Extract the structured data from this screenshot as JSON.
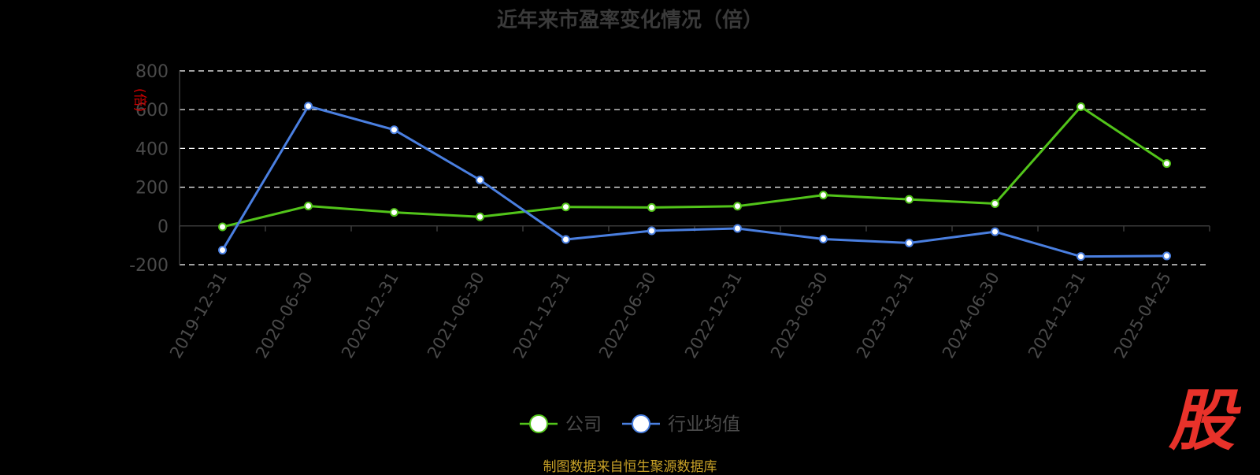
{
  "chart_data": {
    "type": "line",
    "title": "近年来市盈率变化情况（倍）",
    "ylabel": "(倍)",
    "xlabel": "",
    "ylim": [
      -200,
      800
    ],
    "yticks": [
      -200,
      0,
      200,
      400,
      600,
      800
    ],
    "grid": true,
    "legend": "bottom",
    "categories": [
      "2019-12-31",
      "2020-06-30",
      "2020-12-31",
      "2021-06-30",
      "2021-12-31",
      "2022-06-30",
      "2022-12-31",
      "2023-06-30",
      "2023-12-31",
      "2024-06-30",
      "2024-12-31",
      "2025-04-25"
    ],
    "series": [
      {
        "name": "公司",
        "color": "#52c41a",
        "values": [
          -5,
          103,
          70,
          47,
          98,
          95,
          102,
          159,
          137,
          115,
          615,
          322
        ]
      },
      {
        "name": "行业均值",
        "color": "#4a7fe0",
        "values": [
          -125,
          618,
          496,
          237,
          -70,
          -25,
          -13,
          -68,
          -88,
          -30,
          -158,
          -155
        ]
      }
    ]
  },
  "source": "制图数据来自恒生聚源数据库",
  "logo": "股",
  "colors": {
    "background": "#000000",
    "grid": "#ffffff",
    "axis_text": "#4a4a4a",
    "ylabel": "#cc0000",
    "source": "#c9a227",
    "logo": "#e8322a"
  }
}
